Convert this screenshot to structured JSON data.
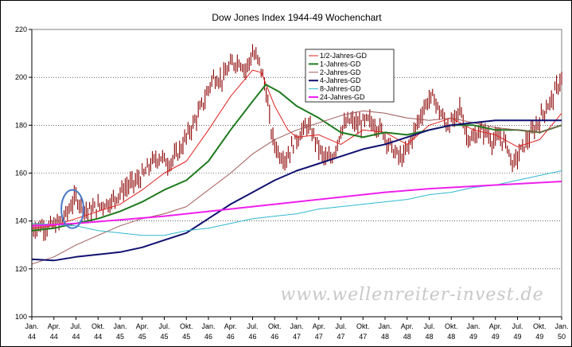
{
  "chart_data": {
    "type": "line",
    "title": "Dow Jones Index 1944-49 Wochenchart",
    "xlabel": "",
    "ylabel": "",
    "ylim": [
      100,
      220
    ],
    "y_ticks": [
      100,
      120,
      140,
      160,
      180,
      200,
      220
    ],
    "grid": true,
    "legend_position": "top-center",
    "watermark": "www.wellenreiter-invest.de",
    "x_ticks": [
      {
        "top": "Jan.",
        "bottom": "44",
        "t": 1944.0
      },
      {
        "top": "Apr.",
        "bottom": "44",
        "t": 1944.25
      },
      {
        "top": "Jul.",
        "bottom": "44",
        "t": 1944.5
      },
      {
        "top": "Okt.",
        "bottom": "44",
        "t": 1944.75
      },
      {
        "top": "Jan.",
        "bottom": "45",
        "t": 1945.0
      },
      {
        "top": "Apr.",
        "bottom": "45",
        "t": 1945.25
      },
      {
        "top": "Jul.",
        "bottom": "45",
        "t": 1945.5
      },
      {
        "top": "Okt.",
        "bottom": "45",
        "t": 1945.75
      },
      {
        "top": "Jan.",
        "bottom": "46",
        "t": 1946.0
      },
      {
        "top": "Apr.",
        "bottom": "46",
        "t": 1946.25
      },
      {
        "top": "Jul.",
        "bottom": "46",
        "t": 1946.5
      },
      {
        "top": "Okt.",
        "bottom": "46",
        "t": 1946.75
      },
      {
        "top": "Jan.",
        "bottom": "47",
        "t": 1947.0
      },
      {
        "top": "Apr.",
        "bottom": "47",
        "t": 1947.25
      },
      {
        "top": "Jul.",
        "bottom": "47",
        "t": 1947.5
      },
      {
        "top": "Okt.",
        "bottom": "47",
        "t": 1947.75
      },
      {
        "top": "Jan.",
        "bottom": "48",
        "t": 1948.0
      },
      {
        "top": "Apr.",
        "bottom": "48",
        "t": 1948.25
      },
      {
        "top": "Jul.",
        "bottom": "48",
        "t": 1948.5
      },
      {
        "top": "Okt.",
        "bottom": "48",
        "t": 1948.75
      },
      {
        "top": "Jan.",
        "bottom": "49",
        "t": 1949.0
      },
      {
        "top": "Apr.",
        "bottom": "49",
        "t": 1949.25
      },
      {
        "top": "Jul.",
        "bottom": "49",
        "t": 1949.5
      },
      {
        "top": "Okt.",
        "bottom": "49",
        "t": 1949.75
      },
      {
        "top": "Jan.",
        "bottom": "50",
        "t": 1950.0
      }
    ],
    "xlim": [
      1944.0,
      1950.0
    ],
    "price": {
      "color": "#8b0000",
      "points": [
        [
          1944.0,
          137
        ],
        [
          1944.1,
          138
        ],
        [
          1944.2,
          137.5
        ],
        [
          1944.3,
          139
        ],
        [
          1944.38,
          142
        ],
        [
          1944.45,
          147
        ],
        [
          1944.5,
          150
        ],
        [
          1944.55,
          147
        ],
        [
          1944.62,
          144
        ],
        [
          1944.7,
          145
        ],
        [
          1944.8,
          147
        ],
        [
          1944.9,
          148
        ],
        [
          1945.0,
          152
        ],
        [
          1945.1,
          155
        ],
        [
          1945.2,
          157
        ],
        [
          1945.28,
          160
        ],
        [
          1945.35,
          164
        ],
        [
          1945.45,
          167
        ],
        [
          1945.55,
          164
        ],
        [
          1945.65,
          168
        ],
        [
          1945.75,
          175
        ],
        [
          1945.85,
          182
        ],
        [
          1945.95,
          190
        ],
        [
          1946.05,
          200
        ],
        [
          1946.15,
          199
        ],
        [
          1946.25,
          205
        ],
        [
          1946.35,
          207
        ],
        [
          1946.42,
          203
        ],
        [
          1946.5,
          210
        ],
        [
          1946.58,
          206
        ],
        [
          1946.65,
          195
        ],
        [
          1946.72,
          175
        ],
        [
          1946.8,
          168
        ],
        [
          1946.88,
          166
        ],
        [
          1946.96,
          172
        ],
        [
          1947.05,
          177
        ],
        [
          1947.12,
          180
        ],
        [
          1947.2,
          175
        ],
        [
          1947.28,
          168
        ],
        [
          1947.35,
          165
        ],
        [
          1947.42,
          168
        ],
        [
          1947.5,
          178
        ],
        [
          1947.6,
          182
        ],
        [
          1947.7,
          180
        ],
        [
          1947.8,
          182
        ],
        [
          1947.9,
          180
        ],
        [
          1947.98,
          177
        ],
        [
          1948.05,
          172
        ],
        [
          1948.12,
          168
        ],
        [
          1948.2,
          166
        ],
        [
          1948.3,
          174
        ],
        [
          1948.4,
          184
        ],
        [
          1948.48,
          190
        ],
        [
          1948.55,
          192
        ],
        [
          1948.6,
          187
        ],
        [
          1948.7,
          180
        ],
        [
          1948.8,
          182
        ],
        [
          1948.85,
          188
        ],
        [
          1948.92,
          176
        ],
        [
          1949.0,
          174
        ],
        [
          1949.08,
          178
        ],
        [
          1949.15,
          177
        ],
        [
          1949.22,
          173
        ],
        [
          1949.3,
          175
        ],
        [
          1949.38,
          172
        ],
        [
          1949.45,
          163
        ],
        [
          1949.5,
          167
        ],
        [
          1949.58,
          172
        ],
        [
          1949.65,
          176
        ],
        [
          1949.72,
          180
        ],
        [
          1949.8,
          186
        ],
        [
          1949.88,
          190
        ],
        [
          1949.95,
          196
        ],
        [
          1950.0,
          200
        ]
      ]
    },
    "series": [
      {
        "name": "1/2-Jahres-GD",
        "color": "#e02020",
        "width": 1,
        "points": [
          [
            1944.0,
            137
          ],
          [
            1944.25,
            138
          ],
          [
            1944.5,
            141
          ],
          [
            1944.75,
            144
          ],
          [
            1945.0,
            147
          ],
          [
            1945.25,
            153
          ],
          [
            1945.5,
            160
          ],
          [
            1945.75,
            165
          ],
          [
            1946.0,
            178
          ],
          [
            1946.25,
            192
          ],
          [
            1946.5,
            203
          ],
          [
            1946.6,
            202
          ],
          [
            1946.75,
            188
          ],
          [
            1946.9,
            178
          ],
          [
            1947.0,
            175
          ],
          [
            1947.25,
            176
          ],
          [
            1947.5,
            172
          ],
          [
            1947.75,
            178
          ],
          [
            1948.0,
            177
          ],
          [
            1948.25,
            172
          ],
          [
            1948.5,
            180
          ],
          [
            1948.75,
            183
          ],
          [
            1949.0,
            178
          ],
          [
            1949.25,
            176
          ],
          [
            1949.5,
            171
          ],
          [
            1949.75,
            174
          ],
          [
            1950.0,
            185
          ]
        ]
      },
      {
        "name": "1-Jahres-GD",
        "color": "#1e7a1e",
        "width": 2,
        "points": [
          [
            1944.0,
            136
          ],
          [
            1944.25,
            137
          ],
          [
            1944.5,
            139
          ],
          [
            1944.75,
            141
          ],
          [
            1945.0,
            144
          ],
          [
            1945.25,
            148
          ],
          [
            1945.5,
            153
          ],
          [
            1945.75,
            157
          ],
          [
            1946.0,
            165
          ],
          [
            1946.25,
            178
          ],
          [
            1946.5,
            190
          ],
          [
            1946.65,
            197
          ],
          [
            1946.8,
            194
          ],
          [
            1947.0,
            188
          ],
          [
            1947.25,
            183
          ],
          [
            1947.5,
            177
          ],
          [
            1947.75,
            175
          ],
          [
            1948.0,
            177
          ],
          [
            1948.25,
            176
          ],
          [
            1948.5,
            178
          ],
          [
            1948.75,
            180
          ],
          [
            1949.0,
            180
          ],
          [
            1949.25,
            178
          ],
          [
            1949.5,
            178
          ],
          [
            1949.75,
            177
          ],
          [
            1950.0,
            180
          ]
        ]
      },
      {
        "name": "2-Jahres-GD",
        "color": "#a05a5a",
        "width": 1,
        "points": [
          [
            1944.0,
            122
          ],
          [
            1944.25,
            125
          ],
          [
            1944.5,
            130
          ],
          [
            1944.75,
            134
          ],
          [
            1945.0,
            138
          ],
          [
            1945.25,
            141
          ],
          [
            1945.5,
            143
          ],
          [
            1945.75,
            146
          ],
          [
            1946.0,
            153
          ],
          [
            1946.25,
            160
          ],
          [
            1946.5,
            168
          ],
          [
            1946.75,
            174
          ],
          [
            1947.0,
            178
          ],
          [
            1947.25,
            181
          ],
          [
            1947.5,
            184
          ],
          [
            1947.75,
            186
          ],
          [
            1948.0,
            185
          ],
          [
            1948.25,
            183
          ],
          [
            1948.5,
            182
          ],
          [
            1948.75,
            183
          ],
          [
            1949.0,
            181
          ],
          [
            1949.25,
            179
          ],
          [
            1949.5,
            178
          ],
          [
            1949.75,
            177
          ],
          [
            1950.0,
            180
          ]
        ]
      },
      {
        "name": "4-Jahres-GD",
        "color": "#101070",
        "width": 2,
        "points": [
          [
            1944.0,
            124
          ],
          [
            1944.25,
            123.5
          ],
          [
            1944.5,
            125
          ],
          [
            1944.75,
            126
          ],
          [
            1945.0,
            127
          ],
          [
            1945.25,
            129
          ],
          [
            1945.5,
            132
          ],
          [
            1945.75,
            135
          ],
          [
            1946.0,
            141
          ],
          [
            1946.25,
            147
          ],
          [
            1946.5,
            152
          ],
          [
            1946.75,
            157
          ],
          [
            1947.0,
            161
          ],
          [
            1947.25,
            164
          ],
          [
            1947.5,
            167
          ],
          [
            1947.75,
            170
          ],
          [
            1948.0,
            172
          ],
          [
            1948.25,
            175
          ],
          [
            1948.5,
            178
          ],
          [
            1948.75,
            180
          ],
          [
            1949.0,
            181
          ],
          [
            1949.25,
            182
          ],
          [
            1949.5,
            182
          ],
          [
            1949.75,
            182
          ],
          [
            1950.0,
            182
          ]
        ]
      },
      {
        "name": "8-Jahres-GD",
        "color": "#30b8d0",
        "width": 1,
        "points": [
          [
            1944.0,
            139
          ],
          [
            1944.25,
            138.5
          ],
          [
            1944.5,
            138
          ],
          [
            1944.75,
            136
          ],
          [
            1945.0,
            135
          ],
          [
            1945.25,
            134
          ],
          [
            1945.5,
            134
          ],
          [
            1945.75,
            136
          ],
          [
            1946.0,
            137
          ],
          [
            1946.25,
            139
          ],
          [
            1946.5,
            141
          ],
          [
            1946.75,
            142
          ],
          [
            1947.0,
            143
          ],
          [
            1947.25,
            145
          ],
          [
            1947.5,
            146
          ],
          [
            1947.75,
            147
          ],
          [
            1948.0,
            148
          ],
          [
            1948.25,
            149
          ],
          [
            1948.5,
            151
          ],
          [
            1948.75,
            152
          ],
          [
            1949.0,
            154
          ],
          [
            1949.25,
            155
          ],
          [
            1949.5,
            157
          ],
          [
            1949.75,
            159
          ],
          [
            1950.0,
            161
          ]
        ]
      },
      {
        "name": "24-Jahres-GD",
        "color": "#ee20ee",
        "width": 2,
        "points": [
          [
            1944.0,
            138
          ],
          [
            1944.5,
            139
          ],
          [
            1945.0,
            140.5
          ],
          [
            1945.5,
            142
          ],
          [
            1946.0,
            144
          ],
          [
            1946.5,
            146
          ],
          [
            1947.0,
            148
          ],
          [
            1947.5,
            150
          ],
          [
            1948.0,
            152
          ],
          [
            1948.5,
            153.5
          ],
          [
            1949.0,
            154.5
          ],
          [
            1949.5,
            155.5
          ],
          [
            1950.0,
            156.5
          ]
        ]
      }
    ],
    "annotation": {
      "type": "ellipse",
      "color": "#4a78c8",
      "t": 1944.46,
      "y": 145
    }
  }
}
